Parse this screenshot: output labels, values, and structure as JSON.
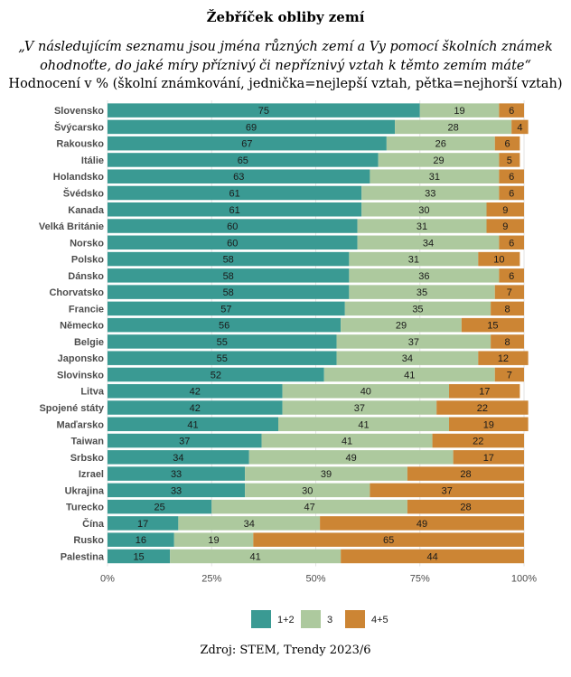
{
  "chart_data": {
    "type": "bar",
    "orientation": "horizontal",
    "stacked": "percent",
    "title": "Žebříček obliby zemí",
    "subtitle": "„V následujícím seznamu jsou jména různých zemí a Vy pomocí školních známek ohodnoťte, do jaké míry příznivý či nepříznivý vztah k těmto zemím máte“",
    "subtitle2": "Hodnocení v % (školní známkování, jednička=nejlepší vztah, pětka=nejhorší vztah)",
    "categories": [
      "Slovensko",
      "Švýcarsko",
      "Rakousko",
      "Itálie",
      "Holandsko",
      "Švédsko",
      "Kanada",
      "Velká Británie",
      "Norsko",
      "Polsko",
      "Dánsko",
      "Chorvatsko",
      "Francie",
      "Německo",
      "Belgie",
      "Japonsko",
      "Slovinsko",
      "Litva",
      "Spojené státy",
      "Maďarsko",
      "Taiwan",
      "Srbsko",
      "Izrael",
      "Ukrajina",
      "Turecko",
      "Čína",
      "Rusko",
      "Palestina"
    ],
    "series": [
      {
        "name": "1+2",
        "color": "#3a9a93",
        "values": [
          75,
          69,
          67,
          65,
          63,
          61,
          61,
          60,
          60,
          58,
          58,
          58,
          57,
          56,
          55,
          55,
          52,
          42,
          42,
          41,
          37,
          34,
          33,
          33,
          25,
          17,
          16,
          15
        ]
      },
      {
        "name": "3",
        "color": "#adc99e",
        "values": [
          19,
          28,
          26,
          29,
          31,
          33,
          30,
          31,
          34,
          31,
          36,
          35,
          35,
          29,
          37,
          34,
          41,
          40,
          37,
          41,
          41,
          49,
          39,
          30,
          47,
          34,
          19,
          41
        ]
      },
      {
        "name": "4+5",
        "color": "#cc8534",
        "values": [
          6,
          4,
          6,
          5,
          6,
          6,
          9,
          9,
          6,
          10,
          6,
          7,
          8,
          15,
          8,
          12,
          7,
          17,
          22,
          19,
          22,
          17,
          28,
          37,
          28,
          49,
          65,
          44
        ]
      }
    ],
    "xticks": [
      "0%",
      "25%",
      "50%",
      "75%",
      "100%"
    ],
    "xlim": [
      0,
      100
    ],
    "grid": true,
    "legend": "bottom",
    "source": "Zdroj: STEM, Trendy 2023/6"
  }
}
